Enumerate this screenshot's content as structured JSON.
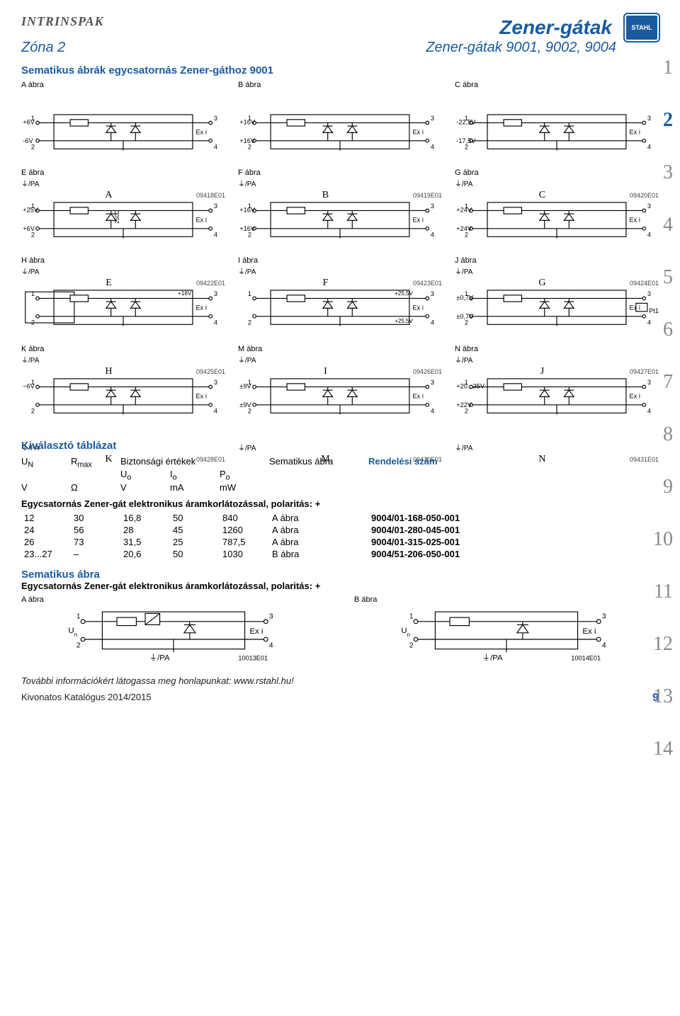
{
  "header": {
    "logo": "INTRINSPAK",
    "title": "Zener-gátak",
    "badge": "STAHL",
    "zone": "Zóna 2",
    "subtitle": "Zener-gátak 9001, 9002, 9004"
  },
  "section1": "Sematikus ábrák egycsatornás Zener-gáthoz 9001",
  "diagrams": [
    {
      "label": "A ábra",
      "vL": "+6V",
      "vL2": "-6V",
      "exi": "Ex i",
      "pa": "⏚/PA",
      "letter": "A",
      "code": "09418E01"
    },
    {
      "label": "B ábra",
      "vL": "+16V",
      "vL2": "+16V",
      "exi": "Ex i",
      "pa": "⏚/PA",
      "letter": "B",
      "code": "09419E01"
    },
    {
      "label": "C ábra",
      "vL": "-22,5V",
      "vL2": "-17,5V",
      "exi": "Ex i",
      "pa": "⏚/PA",
      "letter": "C",
      "code": "09420E01"
    },
    {
      "label": "E ábra",
      "vL": "+25V",
      "vL2": "+6V",
      "exi": "Ex i",
      "pa": "⏚/PA",
      "letter": "E",
      "code": "09422E01",
      "extra": "250Ω"
    },
    {
      "label": "F ábra",
      "vL": "+16V",
      "vL2": "+16V",
      "exi": "Ex i",
      "pa": "⏚/PA",
      "letter": "F",
      "code": "09423E01"
    },
    {
      "label": "G ábra",
      "vL": "+24V",
      "vL2": "+24V",
      "exi": "Ex i",
      "pa": "⏚/PA",
      "letter": "G",
      "code": "09424E01"
    },
    {
      "label": "H ábra",
      "vL": "",
      "vL2": "",
      "exi": "Ex i",
      "pa": "⏚/PA",
      "letter": "H",
      "code": "09425E01",
      "twin": true,
      "vR": "+16V"
    },
    {
      "label": "I ábra",
      "vL": "",
      "vL2": "",
      "exi": "Ex i",
      "pa": "⏚/PA",
      "letter": "I",
      "code": "09426E01",
      "vR": "+25,5V",
      "vR2": "+25,5V"
    },
    {
      "label": "J ábra",
      "vL": "±0,7V",
      "vL2": "±0,7V",
      "exi": "Ex i",
      "pa": "⏚/PA",
      "letter": "J",
      "code": "09427E01",
      "pt": "Pt100"
    },
    {
      "label": "K ábra",
      "vL": "~6V",
      "vL2": "",
      "exi": "Ex i",
      "pa": "⏚/PA",
      "letter": "K",
      "code": "09428E01"
    },
    {
      "label": "M ábra",
      "vL": "±9V",
      "vL2": "±9V",
      "exi": "Ex i",
      "pa": "⏚/PA",
      "letter": "M",
      "code": "09430E01"
    },
    {
      "label": "N ábra",
      "vL": "+20...35V",
      "vL2": "+22V",
      "exi": "Ex i",
      "pa": "⏚/PA",
      "letter": "N",
      "code": "09431E01"
    }
  ],
  "sidenums": [
    "1",
    "2",
    "3",
    "4",
    "5",
    "6",
    "7",
    "8",
    "9",
    "10",
    "11",
    "12",
    "13",
    "14"
  ],
  "active_sidenum": "2",
  "table": {
    "heading": "Kiválasztó táblázat",
    "cols_row1": {
      "c1": "U",
      "c1sub": "N",
      "c2": "R",
      "c2sub": "max",
      "c3": "Biztonsági értékek",
      "c4": "Sematikus ábra",
      "c5": "Rendelési szám"
    },
    "cols_row2": {
      "c1": "",
      "c2": "",
      "c3": "U",
      "c3sub": "o",
      "c4": "I",
      "c4sub": "o",
      "c5": "P",
      "c5sub": "o"
    },
    "cols_row3": {
      "c1": "V",
      "c2": "Ω",
      "c3": "V",
      "c4": "mA",
      "c5": "mW"
    },
    "subsection": "Egycsatornás Zener-gát elektronikus áramkorlátozással, polaritás: +",
    "rows": [
      {
        "un": "12",
        "r": "30",
        "uo": "16,8",
        "io": "50",
        "po": "840",
        "fig": "A ábra",
        "order": "9004/01-168-050-001"
      },
      {
        "un": "24",
        "r": "56",
        "uo": "28",
        "io": "45",
        "po": "1260",
        "fig": "A ábra",
        "order": "9004/01-280-045-001"
      },
      {
        "un": "26",
        "r": "73",
        "uo": "31,5",
        "io": "25",
        "po": "787,5",
        "fig": "A ábra",
        "order": "9004/01-315-025-001"
      },
      {
        "un": "23...27",
        "r": "–",
        "uo": "20,6",
        "io": "50",
        "po": "1030",
        "fig": "B ábra",
        "order": "9004/51-206-050-001"
      }
    ]
  },
  "section2": {
    "title": "Sematikus ábra",
    "sub": "Egycsatornás Zener-gát elektronikus áramkorlátozással, polaritás: +",
    "d1": {
      "label": "A ábra",
      "un": "U",
      "unsub": "n",
      "exi": "Ex i",
      "pa": "⏚/PA",
      "code": "10013E01",
      "pins": [
        "1",
        "3",
        "2",
        "4"
      ]
    },
    "d2": {
      "label": "B ábra",
      "un": "U",
      "unsub": "n",
      "exi": "Ex i",
      "pa": "⏚/PA",
      "code": "10014E01",
      "pins": [
        "1",
        "3",
        "2",
        "4"
      ]
    }
  },
  "footer": {
    "link": "További információkért látogassa meg honlapunkat: www.rstahl.hu!",
    "catalog": "Kivonatos Katalógus 2014/2015",
    "pagenum": "9"
  },
  "colors": {
    "brand": "#1a5a9e",
    "muted": "#888"
  }
}
